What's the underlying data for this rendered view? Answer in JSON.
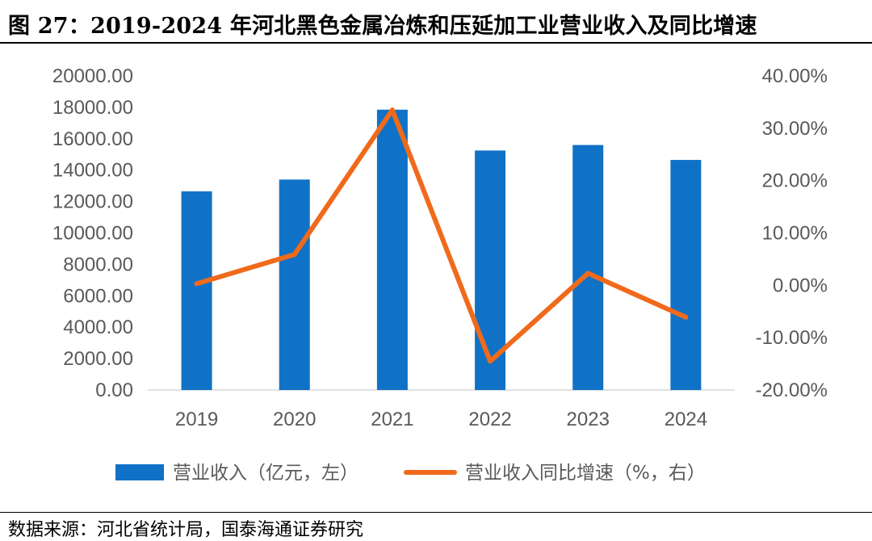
{
  "title": "图 27：2019-2024 年河北黑色金属冶炼和压延加工业营业收入及同比增速",
  "source": "数据来源：河北省统计局，国泰海通证券研究",
  "colors": {
    "bar": "#1072C6",
    "line": "#F06A1B",
    "axis_text": "#595959",
    "grid": "#D9D9D9"
  },
  "chart_data": {
    "type": "bar",
    "title": "2019-2024 年河北黑色金属冶炼和压延加工业营业收入及同比增速",
    "categories": [
      "2019",
      "2020",
      "2021",
      "2022",
      "2023",
      "2024"
    ],
    "series": [
      {
        "name": "营业收入（亿元，左）",
        "type": "bar",
        "axis": "left",
        "values": [
          12650,
          13400,
          17850,
          15250,
          15600,
          14650
        ]
      },
      {
        "name": "营业收入同比增速（%，右）",
        "type": "line",
        "axis": "right",
        "values": [
          0.3,
          5.9,
          33.5,
          -14.5,
          2.3,
          -6.1
        ]
      }
    ],
    "left_axis": {
      "min": 0,
      "max": 20000,
      "step": 2000,
      "tick_labels": [
        "0.00",
        "2000.00",
        "4000.00",
        "6000.00",
        "8000.00",
        "10000.00",
        "12000.00",
        "14000.00",
        "16000.00",
        "18000.00",
        "20000.00"
      ]
    },
    "right_axis": {
      "min": -20,
      "max": 40,
      "step": 10,
      "tick_labels": [
        "-20.00%",
        "-10.00%",
        "0.00%",
        "10.00%",
        "20.00%",
        "30.00%",
        "40.00%"
      ]
    },
    "xlabel": "",
    "ylabel": "",
    "grid": false,
    "legend_position": "bottom"
  }
}
